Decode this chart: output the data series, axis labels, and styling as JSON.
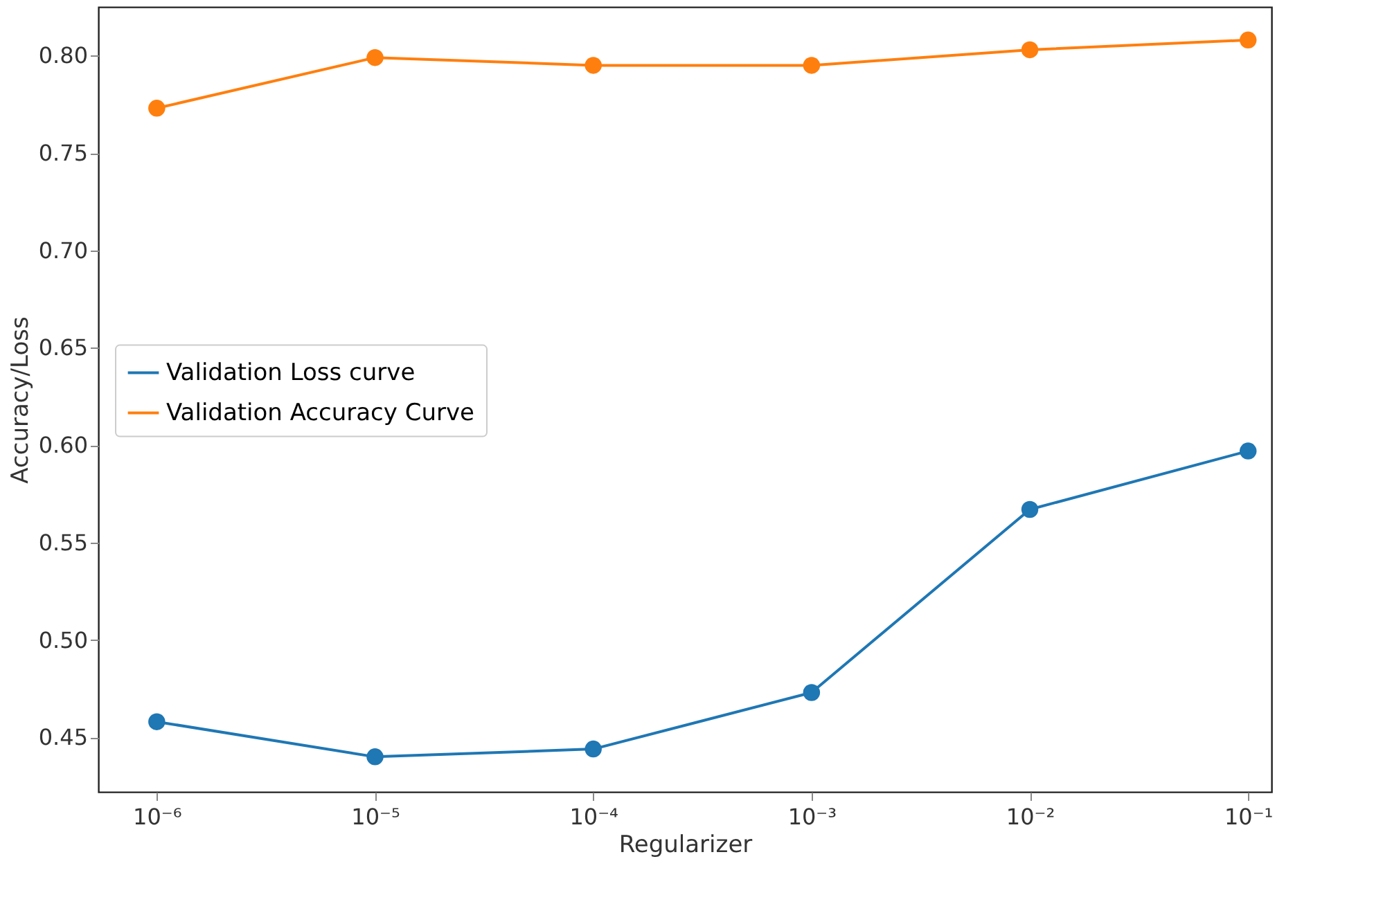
{
  "chart_data": {
    "type": "line",
    "xlabel": "Regularizer",
    "ylabel": "Accuracy/Loss",
    "log": "x",
    "x": [
      1e-06,
      1e-05,
      0.0001,
      0.001,
      0.01,
      0.1
    ],
    "series": [
      {
        "name": "Validation Loss curve",
        "color": "#1f77b4",
        "values": [
          0.458,
          0.44,
          0.444,
          0.473,
          0.567,
          0.597
        ]
      },
      {
        "name": "Validation Accuracy Curve",
        "color": "#ff7f0e",
        "values": [
          0.773,
          0.799,
          0.795,
          0.795,
          0.803,
          0.808
        ]
      }
    ],
    "xlim": [
      5.4e-07,
      0.128
    ],
    "ylim": [
      0.422,
      0.825
    ],
    "xticks": [
      {
        "value": 1e-06,
        "label": "10⁻⁶"
      },
      {
        "value": 1e-05,
        "label": "10⁻⁵"
      },
      {
        "value": 0.0001,
        "label": "10⁻⁴"
      },
      {
        "value": 0.001,
        "label": "10⁻³"
      },
      {
        "value": 0.01,
        "label": "10⁻²"
      },
      {
        "value": 0.1,
        "label": "10⁻¹"
      }
    ],
    "yticks": [
      0.45,
      {
        "value": 0.5,
        "label": "0.50"
      },
      0.55,
      {
        "value": 0.6,
        "label": "0.60"
      },
      0.65,
      {
        "value": 0.7,
        "label": "0.70"
      },
      0.75,
      {
        "value": 0.8,
        "label": "0.80"
      }
    ],
    "grid": false,
    "legend": "left",
    "marker": "circle",
    "line_style": "solid"
  }
}
